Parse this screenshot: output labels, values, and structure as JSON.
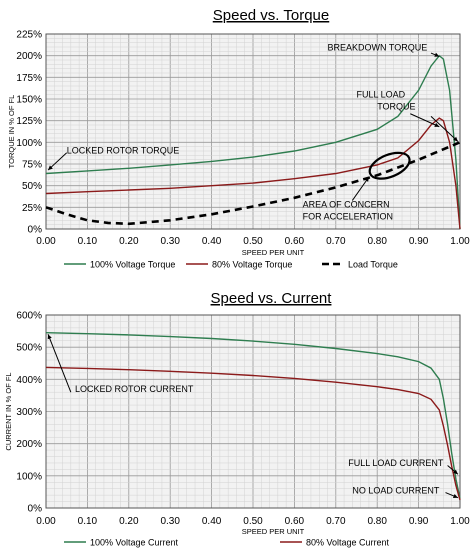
{
  "colors": {
    "voltage_100": "#2e7d4f",
    "voltage_80": "#8b1a1a",
    "load": "#000000",
    "grid_major": "#999999",
    "grid_minor": "#d2d2d2",
    "plot_bg": "#f2f2f2"
  },
  "chart_data": [
    {
      "type": "line",
      "title": "Speed vs. Torque",
      "xlabel": "SPEED PER UNIT",
      "ylabel": "TORQUE IN % OF FL",
      "xlim": [
        0,
        1
      ],
      "ylim": [
        0,
        225
      ],
      "grid": true,
      "legend_position": "bottom",
      "x_ticks": [
        "0.00",
        "0.10",
        "0.20",
        "0.30",
        "0.40",
        "0.50",
        "0.60",
        "0.70",
        "0.80",
        "0.90",
        "1.00"
      ],
      "y_ticks": [
        "0%",
        "25%",
        "50%",
        "75%",
        "100%",
        "125%",
        "150%",
        "175%",
        "200%",
        "225%"
      ],
      "series": [
        {
          "name": "100% Voltage Torque",
          "style": "solid",
          "points": [
            [
              0,
              64
            ],
            [
              0.1,
              67
            ],
            [
              0.2,
              70
            ],
            [
              0.3,
              74
            ],
            [
              0.4,
              78
            ],
            [
              0.5,
              83
            ],
            [
              0.6,
              90
            ],
            [
              0.7,
              100
            ],
            [
              0.8,
              115
            ],
            [
              0.85,
              130
            ],
            [
              0.9,
              160
            ],
            [
              0.93,
              188
            ],
            [
              0.95,
              200
            ],
            [
              0.96,
              196
            ],
            [
              0.975,
              160
            ],
            [
              0.99,
              80
            ],
            [
              1.0,
              0
            ]
          ]
        },
        {
          "name": "80% Voltage Torque",
          "style": "solid",
          "points": [
            [
              0,
              41
            ],
            [
              0.1,
              43
            ],
            [
              0.2,
              45
            ],
            [
              0.3,
              47
            ],
            [
              0.4,
              50
            ],
            [
              0.5,
              53
            ],
            [
              0.6,
              58
            ],
            [
              0.7,
              64
            ],
            [
              0.8,
              74
            ],
            [
              0.85,
              82
            ],
            [
              0.9,
              102
            ],
            [
              0.93,
              120
            ],
            [
              0.95,
              128
            ],
            [
              0.96,
              125
            ],
            [
              0.975,
              100
            ],
            [
              0.99,
              50
            ],
            [
              1.0,
              0
            ]
          ]
        },
        {
          "name": "Load Torque",
          "style": "dashed",
          "points": [
            [
              0,
              25
            ],
            [
              0.05,
              17
            ],
            [
              0.1,
              10
            ],
            [
              0.15,
              7
            ],
            [
              0.2,
              6
            ],
            [
              0.3,
              10
            ],
            [
              0.4,
              17
            ],
            [
              0.5,
              26
            ],
            [
              0.6,
              36
            ],
            [
              0.7,
              48
            ],
            [
              0.8,
              62
            ],
            [
              0.9,
              80
            ],
            [
              0.95,
              90
            ],
            [
              1.0,
              100
            ]
          ]
        }
      ],
      "annotations": [
        {
          "text": "BREAKDOWN TORQUE",
          "x": 0.68,
          "y": 206
        },
        {
          "text": "FULL LOAD",
          "x": 0.75,
          "y": 152
        },
        {
          "text": "TORQUE",
          "x": 0.8,
          "y": 138
        },
        {
          "text": "LOCKED ROTOR TORQUE",
          "x": 0.05,
          "y": 87
        },
        {
          "text": "AREA OF CONCERN",
          "x": 0.62,
          "y": 25
        },
        {
          "text": "FOR ACCELERATION",
          "x": 0.62,
          "y": 11
        }
      ]
    },
    {
      "type": "line",
      "title": "Speed vs. Current",
      "xlabel": "SPEED PER UNIT",
      "ylabel": "CURRENT IN % OF FL",
      "xlim": [
        0,
        1
      ],
      "ylim": [
        0,
        600
      ],
      "grid": true,
      "legend_position": "bottom",
      "x_ticks": [
        "0.00",
        "0.10",
        "0.20",
        "0.30",
        "0.40",
        "0.50",
        "0.60",
        "0.70",
        "0.80",
        "0.90",
        "1.00"
      ],
      "y_ticks": [
        "0%",
        "100%",
        "200%",
        "300%",
        "400%",
        "500%",
        "600%"
      ],
      "series": [
        {
          "name": "100% Voltage Current",
          "style": "solid",
          "points": [
            [
              0,
              545
            ],
            [
              0.1,
              542
            ],
            [
              0.2,
              538
            ],
            [
              0.3,
              533
            ],
            [
              0.4,
              527
            ],
            [
              0.5,
              519
            ],
            [
              0.6,
              509
            ],
            [
              0.7,
              496
            ],
            [
              0.8,
              480
            ],
            [
              0.85,
              470
            ],
            [
              0.9,
              455
            ],
            [
              0.93,
              435
            ],
            [
              0.95,
              400
            ],
            [
              0.96,
              340
            ],
            [
              0.97,
              260
            ],
            [
              0.98,
              170
            ],
            [
              0.99,
              90
            ],
            [
              1.0,
              30
            ]
          ]
        },
        {
          "name": "80% Voltage Current",
          "style": "solid",
          "points": [
            [
              0,
              437
            ],
            [
              0.1,
              434
            ],
            [
              0.2,
              430
            ],
            [
              0.3,
              425
            ],
            [
              0.4,
              419
            ],
            [
              0.5,
              412
            ],
            [
              0.6,
              403
            ],
            [
              0.7,
              391
            ],
            [
              0.8,
              377
            ],
            [
              0.85,
              368
            ],
            [
              0.9,
              356
            ],
            [
              0.93,
              338
            ],
            [
              0.95,
              305
            ],
            [
              0.96,
              255
            ],
            [
              0.97,
              195
            ],
            [
              0.98,
              130
            ],
            [
              0.99,
              70
            ],
            [
              1.0,
              25
            ]
          ]
        }
      ],
      "annotations": [
        {
          "text": "LOCKED ROTOR CURRENT",
          "x": 0.07,
          "y": 360
        },
        {
          "text": "FULL LOAD CURRENT",
          "x": 0.73,
          "y": 130
        },
        {
          "text": "NO LOAD CURRENT",
          "x": 0.74,
          "y": 45
        }
      ]
    }
  ]
}
